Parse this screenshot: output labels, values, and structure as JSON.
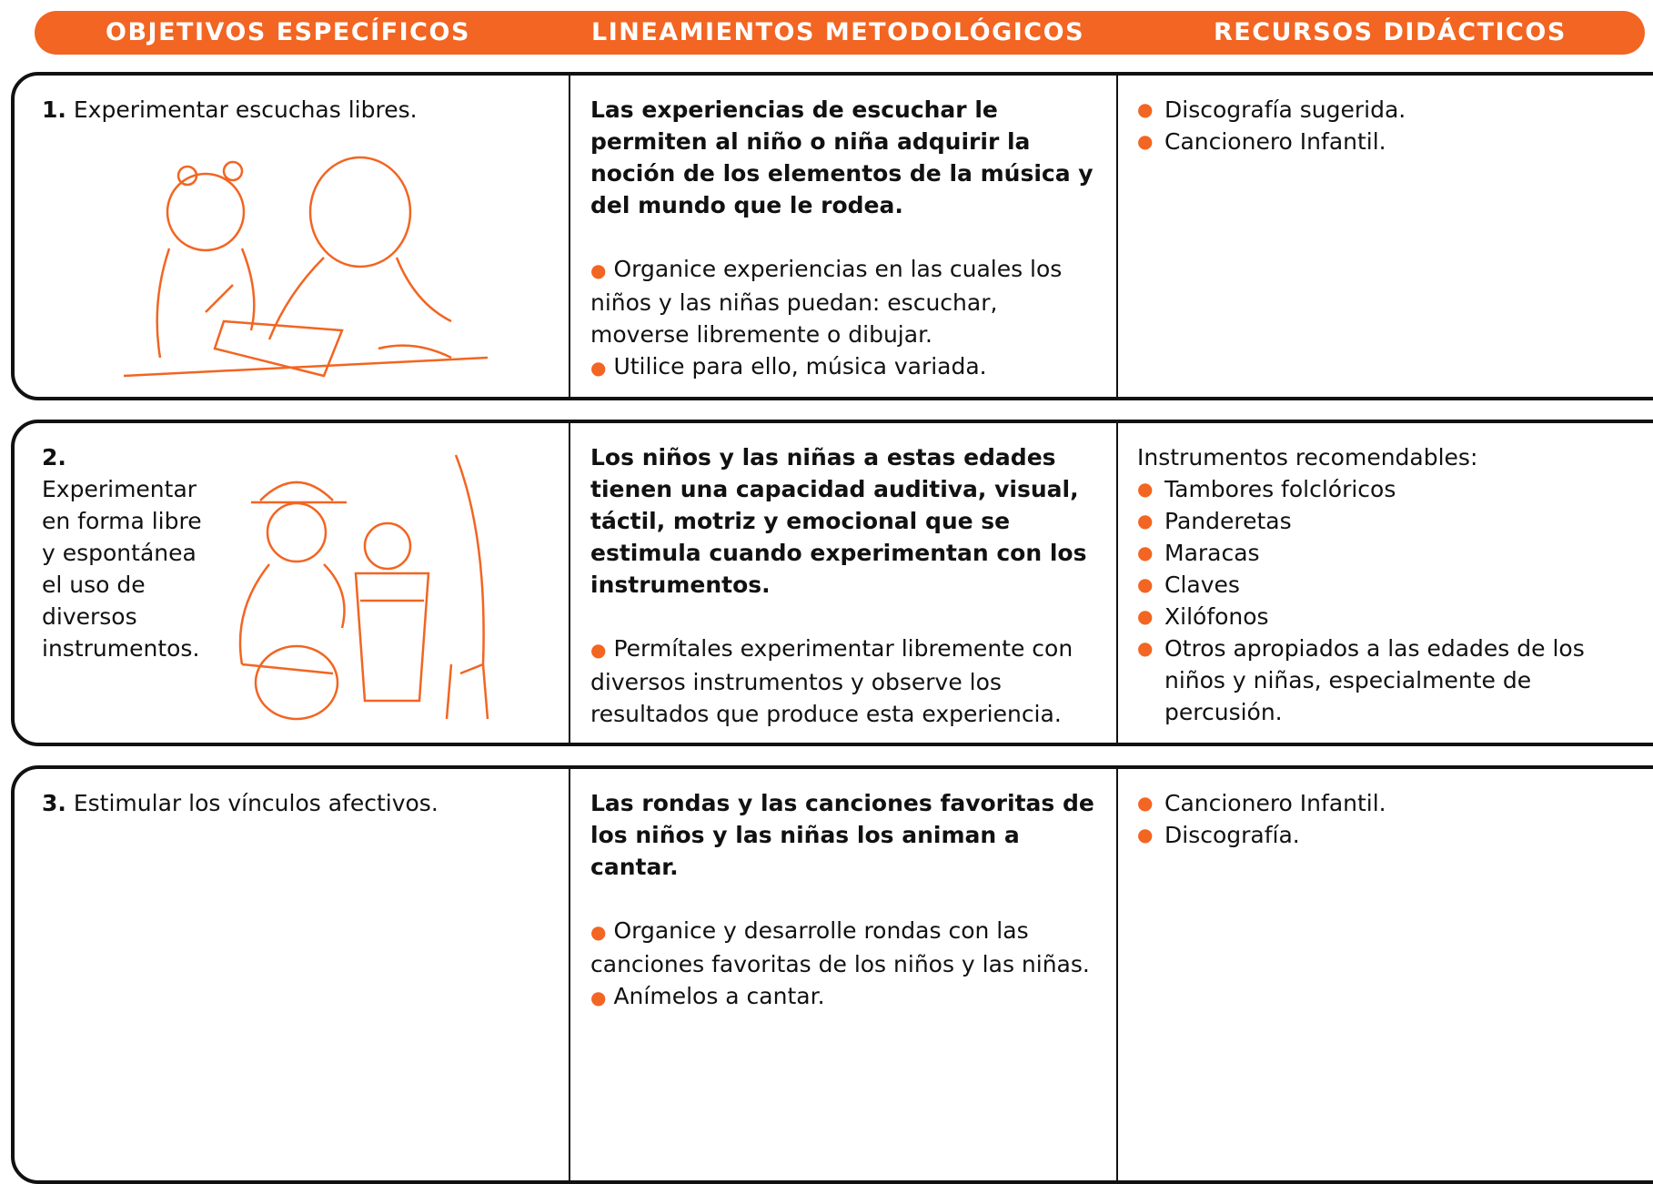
{
  "header": {
    "columns": [
      "OBJETIVOS ESPECÍFICOS",
      "LINEAMIENTOS METODOLÓGICOS",
      "RECURSOS DIDÁCTICOS"
    ]
  },
  "rows": [
    {
      "number": "1.",
      "objective": "Experimentar escuchas libres.",
      "lead": "Las experiencias de escuchar le permiten al niño o niña adquirir la noción de los elementos de la música y del mundo que le rodea.",
      "items": [
        "Organice experiencias en las cuales los niños y las niñas puedan: escuchar, moverse libremente o dibujar.",
        "Utilice para ello, música variada."
      ],
      "resources": [
        "Discografía sugerida.",
        "Cancionero  Infantil."
      ]
    },
    {
      "number": "2.",
      "objective": "Experimentar en forma libre y espontánea el uso de diversos instrumentos.",
      "lead": "Los niños y las niñas a estas edades tienen una capacidad auditiva, visual, táctil, motriz y emocional que se estimula cuando experimentan con los instrumentos.",
      "items": [
        "Permítales experimentar libremente con diversos instrumentos y observe los resultados que produce esta experiencia."
      ],
      "resources_intro": "Instrumentos recomendables:",
      "resources": [
        "Tambores folclóricos",
        "Panderetas",
        "Maracas",
        "Claves",
        "Xilófonos",
        "Otros apropiados a las edades de los niños y niñas, especialmente de percusión."
      ]
    },
    {
      "number": "3.",
      "objective": "Estimular los vínculos afectivos.",
      "lead": "Las rondas y las canciones favoritas de los niños y las niñas los animan a cantar.",
      "items": [
        "Organice y desarrolle rondas con las canciones favoritas de los niños y las niñas.",
        "Anímelos a cantar."
      ],
      "resources": [
        "Cancionero Infantil.",
        "Discografía."
      ]
    }
  ]
}
